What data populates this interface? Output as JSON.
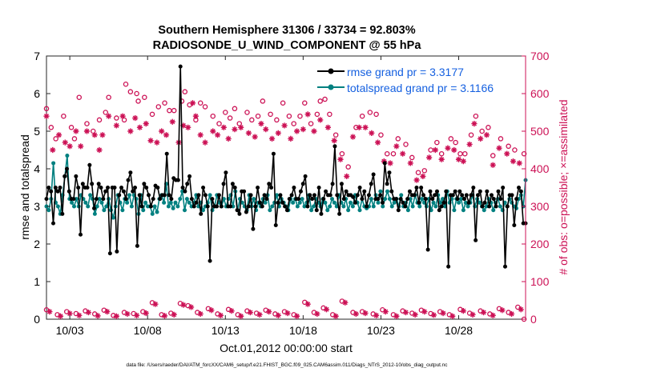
{
  "chart_data": {
    "type": "line",
    "title": "Southern Hemisphere 31306 / 33734 = 92.803%",
    "subtitle": "RADIOSONDE_U_WIND_COMPONENT @ 55 hPa",
    "xlabel": "Oct.01,2012 00:00:00 start",
    "ylabel": "rmse and totalspread",
    "y2label": "# of obs: o=possible; ×=assimilated",
    "footer": "data file: /Users/raeder/DAI/ATM_forcXX/CAM6_setup/f.e21.FHIST_BGC.f09_025.CAM6assim.011/Diags_NTrS_2012-10/obs_diag_output.nc",
    "xlim": [
      1.5,
      32.3
    ],
    "ylim": [
      0,
      7
    ],
    "y2lim": [
      0,
      700
    ],
    "x_ticks": [
      3,
      8,
      13,
      18,
      23,
      28
    ],
    "x_tick_labels": [
      "10/03",
      "10/08",
      "10/13",
      "10/18",
      "10/23",
      "10/28"
    ],
    "y_ticks": [
      0,
      1,
      2,
      3,
      4,
      5,
      6,
      7
    ],
    "y2_ticks": [
      0,
      100,
      200,
      300,
      400,
      500,
      600,
      700
    ],
    "legend": [
      "rmse grand pr = 3.3177",
      "totalspread grand pr = 3.1166"
    ],
    "colors": {
      "rmse": "#000000",
      "spread": "#008080",
      "obs": "#cc1155",
      "axis2": "#cc1155"
    },
    "series": [
      {
        "name": "rmse grand pr = 3.3177",
        "values": [
          3.2,
          3.5,
          3.4,
          2.55,
          3.5,
          3.4,
          3.5,
          2.8,
          3.8,
          4.0,
          3.4,
          3.2,
          3.2,
          3.8,
          3.5,
          2.25,
          3.6,
          3.5,
          3.5,
          4.1,
          3.6,
          2.95,
          3.2,
          3.6,
          3.5,
          3.2,
          3.4,
          3.5,
          1.75,
          3.5,
          3.5,
          1.8,
          3.3,
          3.5,
          3.4,
          3.2,
          3.7,
          3.9,
          3.4,
          3.5,
          1.95,
          3.3,
          3.0,
          3.6,
          3.5,
          3.3,
          3.0,
          3.2,
          3.55,
          3.5,
          3.2,
          3.3,
          3.3,
          4.4,
          3.3,
          3.2,
          3.75,
          3.7,
          3.7,
          6.72,
          3.5,
          3.4,
          3.6,
          3.8,
          3.2,
          3.0,
          3.1,
          3.3,
          2.8,
          3.5,
          3.3,
          3.0,
          1.55,
          3.2,
          3.0,
          3.0,
          3.3,
          3.0,
          3.6,
          3.9,
          3.0,
          3.0,
          3.6,
          3.5,
          2.9,
          2.8,
          3.4,
          3.4,
          2.85,
          3.0,
          3.3,
          2.4,
          3.0,
          3.5,
          3.1,
          3.0,
          3.3,
          3.2,
          3.6,
          3.5,
          4.4,
          2.5,
          3.1,
          3.3,
          3.1,
          3.0,
          2.9,
          3.2,
          3.3,
          3.5,
          3.2,
          3.2,
          3.4,
          3.6,
          3.8,
          3.0,
          3.3,
          3.2,
          3.3,
          2.9,
          3.5,
          2.8,
          3.2,
          3.4,
          3.3,
          3.3,
          3.6,
          4.6,
          3.3,
          2.8,
          3.6,
          3.2,
          3.4,
          3.3,
          3.3,
          3.25,
          3.1,
          3.3,
          3.5,
          3.2,
          3.4,
          3.0,
          3.3,
          3.6,
          3.85,
          3.2,
          3.2,
          3.3,
          3.1,
          4.15,
          3.6,
          3.9,
          3.4,
          3.2,
          3.2,
          2.9,
          3.2,
          3.1,
          3.0,
          3.2,
          3.4,
          3.3,
          3.3,
          3.5,
          3.1,
          3.5,
          3.3,
          3.2,
          1.85,
          3.4,
          3.2,
          3.3,
          3.4,
          2.9,
          3.0,
          3.1,
          3.4,
          1.4,
          3.3,
          3.3,
          3.4,
          3.2,
          3.4,
          3.3,
          3.2,
          3.3,
          3.1,
          3.3,
          3.5,
          2.1,
          3.3,
          3.4,
          3.0,
          3.1,
          3.4,
          3.0,
          3.3,
          3.2,
          3.0,
          3.4,
          3.2,
          3.5,
          1.4,
          3.0,
          3.3,
          3.3,
          2.5,
          3.2,
          3.5,
          3.4,
          2.55,
          2.55
        ],
        "dashed": false
      },
      {
        "name": "totalspread grand pr = 3.1166",
        "values": [
          3.0,
          2.9,
          3.2,
          4.15,
          3.1,
          3.0,
          2.8,
          3.3,
          3.8,
          4.35,
          3.2,
          3.1,
          3.0,
          3.2,
          3.0,
          3.3,
          3.2,
          3.1,
          3.0,
          3.3,
          3.2,
          2.8,
          3.0,
          3.2,
          3.1,
          2.9,
          3.0,
          3.2,
          2.9,
          2.7,
          3.0,
          3.3,
          3.1,
          2.9,
          3.2,
          3.1,
          3.3,
          3.0,
          3.3,
          3.2,
          2.8,
          3.3,
          2.9,
          3.1,
          3.0,
          3.0,
          2.8,
          3.0,
          2.85,
          3.2,
          3.3,
          3.1,
          3.6,
          3.0,
          3.1,
          2.95,
          3.1,
          3.0,
          3.2,
          3.4,
          2.9,
          3.2,
          3.1,
          3.0,
          3.1,
          3.3,
          3.0,
          3.1,
          2.9,
          3.0,
          3.1,
          3.3,
          2.9,
          3.0,
          3.3,
          3.1,
          3.0,
          3.2,
          3.0,
          3.2,
          3.3,
          3.0,
          3.4,
          2.9,
          3.2,
          3.1,
          3.0,
          2.9,
          3.3,
          3.0,
          3.2,
          2.9,
          3.1,
          3.0,
          3.2,
          3.1,
          3.3,
          2.9,
          3.0,
          3.1,
          3.3,
          3.0,
          3.2,
          3.1,
          3.0,
          2.9,
          3.2,
          3.1,
          3.2,
          3.0,
          3.1,
          3.2,
          3.0,
          3.1,
          3.3,
          2.9,
          3.0,
          3.2,
          3.1,
          3.0,
          3.2,
          3.1,
          2.9,
          3.0,
          3.2,
          3.1,
          3.0,
          3.3,
          3.1,
          3.0,
          3.2,
          2.9,
          3.1,
          3.0,
          3.3,
          3.1,
          2.9,
          3.2,
          3.0,
          2.95,
          3.0,
          3.2,
          3.0,
          3.3,
          3.1,
          3.4,
          3.0,
          3.2,
          3.4,
          3.2,
          3.0,
          3.1,
          3.2,
          3.0,
          3.3,
          3.0,
          3.1,
          2.9,
          3.2,
          3.0,
          3.3,
          3.1,
          3.0,
          3.2,
          3.1,
          3.0,
          3.2,
          2.9,
          3.1,
          3.0,
          3.3,
          3.1,
          3.2,
          3.0,
          3.4,
          3.1,
          3.2,
          2.9,
          3.2,
          3.1,
          3.2,
          2.9,
          3.1,
          3.0,
          3.1,
          3.3,
          3.0,
          3.2,
          3.1,
          3.0,
          2.9,
          3.0,
          3.2,
          3.1,
          2.9,
          3.1,
          3.2,
          3.0,
          2.9,
          3.1,
          3.0,
          3.2,
          3.1,
          3.0,
          2.95,
          3.2,
          3.3,
          3.0,
          3.7
        ],
        "dashed": false
      }
    ],
    "obs_possible": [
      [
        1.5,
        560
      ],
      [
        1.8,
        510
      ],
      [
        2.1,
        480
      ],
      [
        2.6,
        540
      ],
      [
        3.1,
        510
      ],
      [
        3.3,
        480
      ],
      [
        3.6,
        590
      ],
      [
        4.1,
        520
      ],
      [
        4.5,
        500
      ],
      [
        4.9,
        530
      ],
      [
        5.3,
        550
      ],
      [
        5.5,
        590
      ],
      [
        6.0,
        535
      ],
      [
        6.5,
        530
      ],
      [
        6.6,
        625
      ],
      [
        6.9,
        605
      ],
      [
        7.3,
        600
      ],
      [
        7.4,
        580
      ],
      [
        7.8,
        590
      ],
      [
        8.3,
        545
      ],
      [
        8.7,
        565
      ],
      [
        9.1,
        575
      ],
      [
        9.4,
        555
      ],
      [
        9.7,
        555
      ],
      [
        10.2,
        580
      ],
      [
        10.4,
        605
      ],
      [
        10.7,
        570
      ],
      [
        11.1,
        530
      ],
      [
        11.4,
        575
      ],
      [
        11.7,
        565
      ],
      [
        12.2,
        540
      ],
      [
        12.6,
        520
      ],
      [
        13.0,
        550
      ],
      [
        13.3,
        535
      ],
      [
        13.6,
        560
      ],
      [
        13.9,
        520
      ],
      [
        14.4,
        550
      ],
      [
        14.7,
        530
      ],
      [
        15.1,
        540
      ],
      [
        15.4,
        580
      ],
      [
        15.9,
        545
      ],
      [
        16.3,
        530
      ],
      [
        16.7,
        575
      ],
      [
        17.1,
        540
      ],
      [
        17.4,
        520
      ],
      [
        17.8,
        540
      ],
      [
        18.1,
        575
      ],
      [
        18.5,
        520
      ],
      [
        18.9,
        545
      ],
      [
        19.1,
        580
      ],
      [
        19.4,
        585
      ],
      [
        19.7,
        545
      ],
      [
        20.1,
        490
      ],
      [
        20.5,
        440
      ],
      [
        20.9,
        405
      ],
      [
        21.4,
        510
      ],
      [
        21.8,
        540
      ],
      [
        22.3,
        550
      ],
      [
        22.7,
        545
      ],
      [
        23.0,
        490
      ],
      [
        23.4,
        440
      ],
      [
        23.8,
        440
      ],
      [
        24.1,
        480
      ],
      [
        24.6,
        465
      ],
      [
        25.0,
        430
      ],
      [
        25.4,
        390
      ],
      [
        25.8,
        395
      ],
      [
        26.2,
        450
      ],
      [
        26.6,
        470
      ],
      [
        26.9,
        440
      ],
      [
        27.5,
        480
      ],
      [
        27.8,
        470
      ],
      [
        28.1,
        440
      ],
      [
        28.4,
        440
      ],
      [
        28.8,
        490
      ],
      [
        29.1,
        540
      ],
      [
        29.5,
        500
      ],
      [
        29.9,
        510
      ],
      [
        30.2,
        435
      ],
      [
        30.7,
        480
      ],
      [
        31.2,
        460
      ],
      [
        31.6,
        450
      ],
      [
        32.2,
        440
      ]
    ],
    "obs_assimilated": [
      [
        1.5,
        540
      ],
      [
        1.9,
        450
      ],
      [
        2.3,
        490
      ],
      [
        2.7,
        470
      ],
      [
        3.0,
        460
      ],
      [
        3.4,
        500
      ],
      [
        3.7,
        460
      ],
      [
        4.1,
        500
      ],
      [
        4.6,
        490
      ],
      [
        4.9,
        450
      ],
      [
        5.1,
        490
      ],
      [
        5.5,
        540
      ],
      [
        6.0,
        515
      ],
      [
        6.4,
        540
      ],
      [
        6.9,
        500
      ],
      [
        7.2,
        535
      ],
      [
        7.5,
        510
      ],
      [
        7.9,
        520
      ],
      [
        8.2,
        475
      ],
      [
        8.6,
        470
      ],
      [
        8.9,
        500
      ],
      [
        9.2,
        490
      ],
      [
        9.6,
        525
      ],
      [
        10.0,
        470
      ],
      [
        10.3,
        515
      ],
      [
        10.6,
        510
      ],
      [
        10.9,
        575
      ],
      [
        11.1,
        540
      ],
      [
        11.4,
        490
      ],
      [
        11.7,
        470
      ],
      [
        12.2,
        500
      ],
      [
        12.5,
        490
      ],
      [
        12.9,
        510
      ],
      [
        13.2,
        480
      ],
      [
        13.6,
        505
      ],
      [
        14.0,
        510
      ],
      [
        14.5,
        495
      ],
      [
        14.9,
        485
      ],
      [
        15.3,
        520
      ],
      [
        15.6,
        505
      ],
      [
        16.0,
        480
      ],
      [
        16.4,
        495
      ],
      [
        16.8,
        515
      ],
      [
        17.2,
        480
      ],
      [
        17.6,
        500
      ],
      [
        18.0,
        505
      ],
      [
        18.3,
        545
      ],
      [
        18.7,
        500
      ],
      [
        19.1,
        530
      ],
      [
        19.6,
        510
      ],
      [
        20.0,
        475
      ],
      [
        20.4,
        425
      ],
      [
        20.8,
        380
      ],
      [
        21.2,
        485
      ],
      [
        21.6,
        510
      ],
      [
        22.0,
        510
      ],
      [
        22.4,
        495
      ],
      [
        22.8,
        470
      ],
      [
        23.2,
        420
      ],
      [
        23.6,
        415
      ],
      [
        24.0,
        460
      ],
      [
        24.4,
        440
      ],
      [
        24.9,
        415
      ],
      [
        25.3,
        370
      ],
      [
        25.7,
        380
      ],
      [
        26.1,
        430
      ],
      [
        26.5,
        450
      ],
      [
        26.9,
        425
      ],
      [
        27.3,
        455
      ],
      [
        27.7,
        450
      ],
      [
        28.0,
        425
      ],
      [
        28.3,
        420
      ],
      [
        28.7,
        465
      ],
      [
        29.0,
        520
      ],
      [
        29.4,
        480
      ],
      [
        29.8,
        490
      ],
      [
        30.2,
        410
      ],
      [
        30.6,
        455
      ],
      [
        31.1,
        440
      ],
      [
        31.5,
        420
      ],
      [
        31.9,
        415
      ]
    ],
    "obs_possible_low": [
      [
        1.5,
        25
      ],
      [
        2.2,
        12
      ],
      [
        2.8,
        20
      ],
      [
        3.4,
        15
      ],
      [
        4.0,
        22
      ],
      [
        4.6,
        14
      ],
      [
        5.2,
        24
      ],
      [
        5.8,
        10
      ],
      [
        6.5,
        18
      ],
      [
        7.1,
        15
      ],
      [
        7.7,
        20
      ],
      [
        8.3,
        44
      ],
      [
        8.9,
        12
      ],
      [
        9.5,
        16
      ],
      [
        10.1,
        42
      ],
      [
        10.6,
        36
      ],
      [
        11.2,
        18
      ],
      [
        11.9,
        28
      ],
      [
        12.5,
        14
      ],
      [
        13.2,
        26
      ],
      [
        13.8,
        12
      ],
      [
        14.4,
        22
      ],
      [
        15.0,
        16
      ],
      [
        15.6,
        24
      ],
      [
        16.2,
        14
      ],
      [
        16.8,
        20
      ],
      [
        17.4,
        12
      ],
      [
        18.1,
        45
      ],
      [
        18.7,
        18
      ],
      [
        19.3,
        30
      ],
      [
        19.9,
        12
      ],
      [
        20.5,
        48
      ],
      [
        21.2,
        18
      ],
      [
        21.8,
        20
      ],
      [
        22.5,
        14
      ],
      [
        23.1,
        25
      ],
      [
        23.8,
        12
      ],
      [
        24.4,
        22
      ],
      [
        25.0,
        16
      ],
      [
        25.6,
        24
      ],
      [
        26.2,
        15
      ],
      [
        26.8,
        20
      ],
      [
        27.4,
        12
      ],
      [
        28.1,
        26
      ],
      [
        28.7,
        16
      ],
      [
        29.4,
        22
      ],
      [
        30.0,
        14
      ],
      [
        30.6,
        28
      ],
      [
        31.2,
        18
      ],
      [
        31.8,
        32
      ],
      [
        32.2,
        0
      ]
    ],
    "obs_assimilated_low": [
      [
        1.7,
        20
      ],
      [
        2.4,
        8
      ],
      [
        3.0,
        15
      ],
      [
        3.6,
        10
      ],
      [
        4.2,
        18
      ],
      [
        4.8,
        9
      ],
      [
        5.4,
        20
      ],
      [
        6.0,
        8
      ],
      [
        6.7,
        14
      ],
      [
        7.3,
        10
      ],
      [
        7.9,
        16
      ],
      [
        8.5,
        40
      ],
      [
        9.1,
        9
      ],
      [
        9.7,
        12
      ],
      [
        10.3,
        38
      ],
      [
        10.8,
        32
      ],
      [
        11.4,
        14
      ],
      [
        12.1,
        24
      ],
      [
        12.7,
        10
      ],
      [
        13.4,
        22
      ],
      [
        14.0,
        8
      ],
      [
        14.6,
        18
      ],
      [
        15.2,
        12
      ],
      [
        15.8,
        20
      ],
      [
        16.4,
        10
      ],
      [
        17.0,
        16
      ],
      [
        17.6,
        8
      ],
      [
        18.3,
        40
      ],
      [
        18.9,
        14
      ],
      [
        19.5,
        26
      ],
      [
        20.1,
        8
      ],
      [
        20.7,
        44
      ],
      [
        21.4,
        14
      ],
      [
        22.0,
        16
      ],
      [
        22.7,
        10
      ],
      [
        23.3,
        20
      ],
      [
        24.0,
        8
      ],
      [
        24.6,
        18
      ],
      [
        25.2,
        12
      ],
      [
        25.8,
        20
      ],
      [
        26.4,
        11
      ],
      [
        27.0,
        16
      ],
      [
        27.6,
        8
      ],
      [
        28.3,
        22
      ],
      [
        28.9,
        12
      ],
      [
        29.6,
        18
      ],
      [
        30.2,
        10
      ],
      [
        30.8,
        24
      ],
      [
        31.4,
        14
      ],
      [
        32.0,
        26
      ]
    ]
  }
}
